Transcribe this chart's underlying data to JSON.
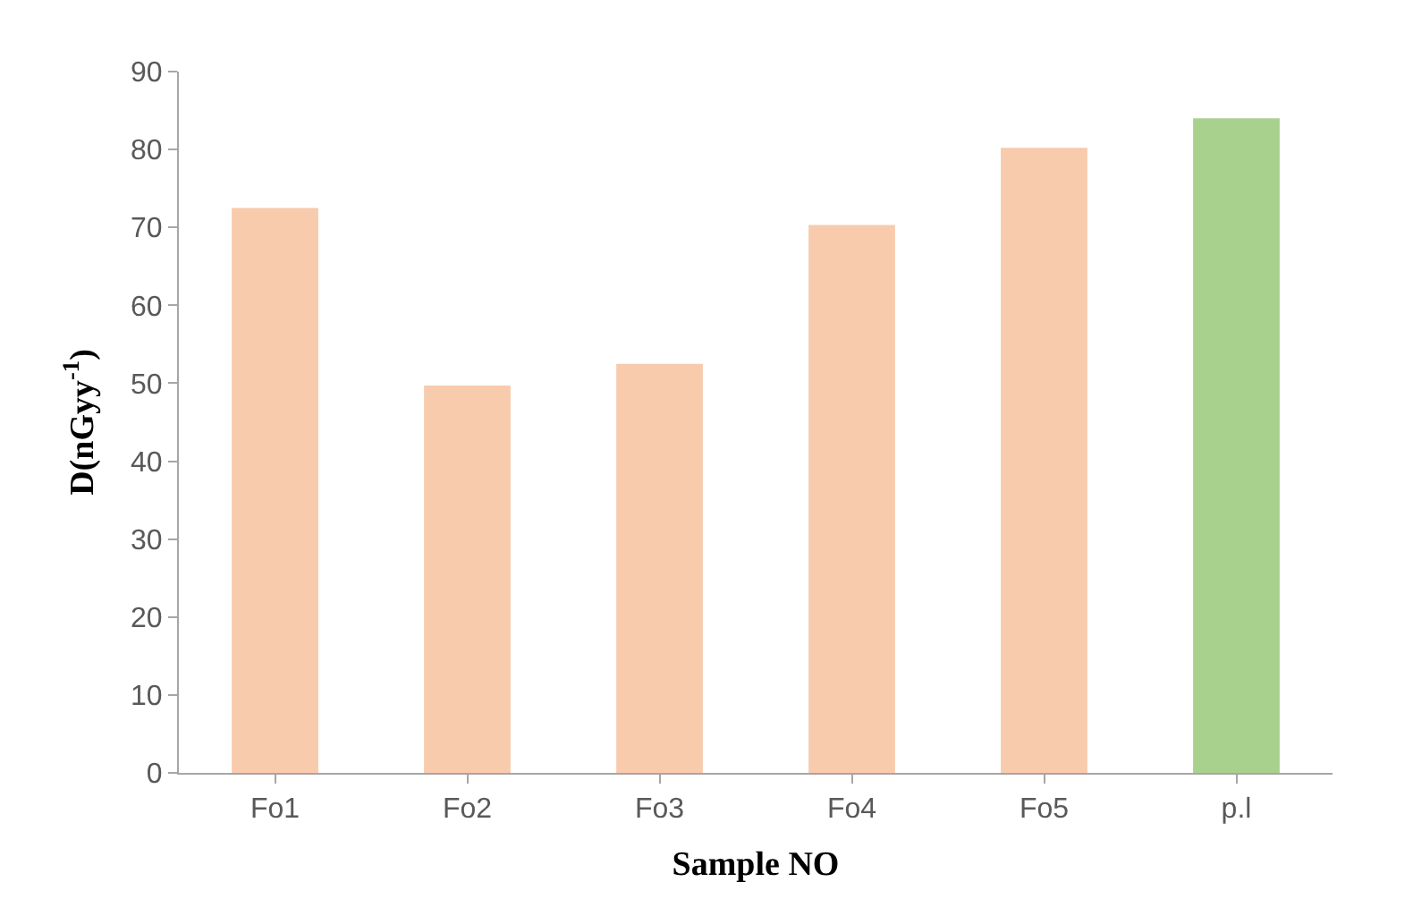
{
  "chart_data": {
    "type": "bar",
    "xlabel": "Sample NO",
    "ylabel": "D(nGyy$^{-1}$)",
    "categories": [
      "Fo1",
      "Fo2",
      "Fo3",
      "Fo4",
      "Fo5",
      "p.l"
    ],
    "values": [
      72.5,
      49.7,
      52.5,
      70.3,
      80.2,
      84
    ],
    "colors": [
      "#f8cbad",
      "#f8cbad",
      "#f8cbad",
      "#f8cbad",
      "#f8cbad",
      "#a9d18e"
    ],
    "ylim": [
      0,
      90
    ],
    "yticks": [
      0,
      10,
      20,
      30,
      40,
      50,
      60,
      70,
      80,
      90
    ]
  }
}
